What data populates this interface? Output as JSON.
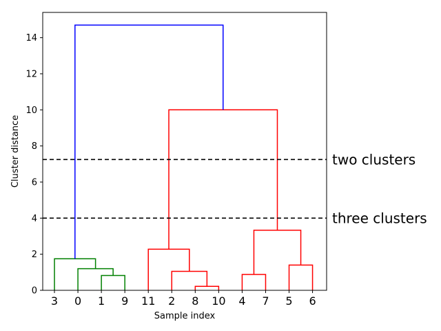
{
  "chart_data": {
    "type": "dendrogram",
    "xlabel": "Sample index",
    "ylabel": "Cluster distance",
    "ylim": [
      0,
      15.4
    ],
    "yticks": [
      0,
      2,
      4,
      6,
      8,
      10,
      12,
      14
    ],
    "leaf_order": [
      "3",
      "0",
      "1",
      "9",
      "11",
      "2",
      "8",
      "10",
      "4",
      "7",
      "5",
      "6"
    ],
    "colors": {
      "green": "#008000",
      "red": "#ff0000",
      "blue": "#0000ff",
      "cut": "#000000"
    },
    "merges": [
      {
        "left": "leaf:2",
        "right": "leaf:3",
        "height": 0.82,
        "color": "green"
      },
      {
        "left": "leaf:1",
        "right": "m0",
        "height": 1.2,
        "color": "green"
      },
      {
        "left": "leaf:0",
        "right": "m1",
        "height": 1.75,
        "color": "green"
      },
      {
        "left": "leaf:6",
        "right": "leaf:7",
        "height": 0.22,
        "color": "red"
      },
      {
        "left": "leaf:5",
        "right": "m3",
        "height": 1.05,
        "color": "red"
      },
      {
        "left": "leaf:4",
        "right": "m4",
        "height": 2.28,
        "color": "red"
      },
      {
        "left": "leaf:8",
        "right": "leaf:9",
        "height": 0.88,
        "color": "red"
      },
      {
        "left": "leaf:10",
        "right": "leaf:11",
        "height": 1.4,
        "color": "red"
      },
      {
        "left": "m6",
        "right": "m7",
        "height": 3.33,
        "color": "red"
      },
      {
        "left": "m5",
        "right": "m8",
        "height": 10.0,
        "color": "red"
      },
      {
        "left": "m2",
        "right": "m9",
        "height": 14.7,
        "color": "blue"
      }
    ],
    "cut_lines": [
      {
        "y": 7.25,
        "label": "two clusters"
      },
      {
        "y": 4.0,
        "label": "three clusters"
      }
    ]
  }
}
